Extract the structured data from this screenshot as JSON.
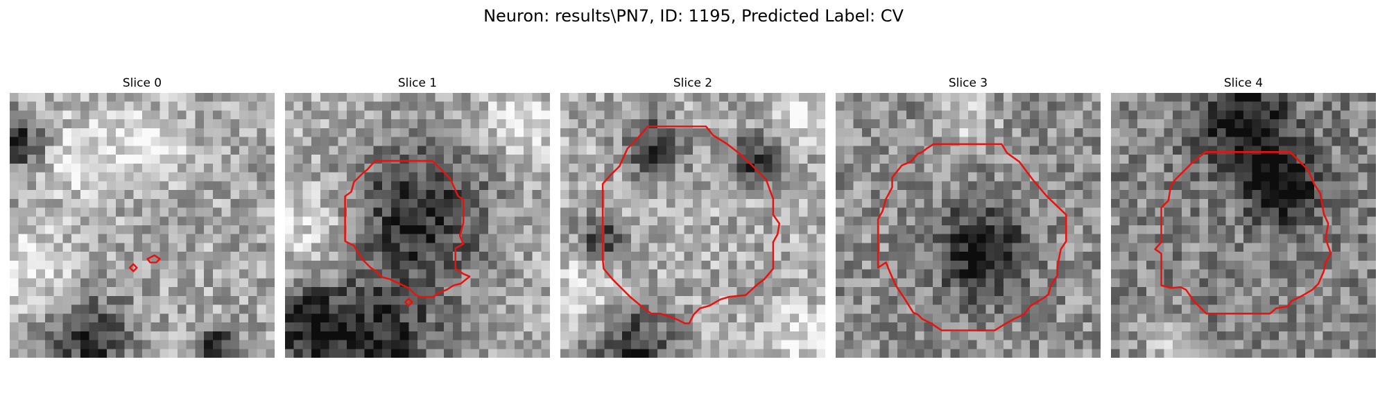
{
  "figure": {
    "title": "Neuron: results\\PN7, ID: 1195, Predicted Label: CV",
    "contour_color": "#e8130f",
    "slices": [
      {
        "title": "Slice 0",
        "mean_gray": 0.66,
        "dark_blobs": [
          [
            0.03,
            0.19,
            0.07
          ],
          [
            0.3,
            0.92,
            0.11
          ],
          [
            0.78,
            0.95,
            0.05
          ]
        ],
        "light_blobs": [
          [
            0.1,
            0.67,
            0.12
          ],
          [
            0.28,
            0.25,
            0.12
          ],
          [
            0.55,
            0.2,
            0.1
          ]
        ]
      },
      {
        "title": "Slice 1",
        "mean_gray": 0.68,
        "dark_blobs": [
          [
            0.35,
            0.94,
            0.17
          ],
          [
            0.08,
            0.88,
            0.1
          ],
          [
            0.5,
            0.45,
            0.2
          ]
        ],
        "light_blobs": [
          [
            0.1,
            0.5,
            0.12
          ],
          [
            0.88,
            0.1,
            0.1
          ]
        ]
      },
      {
        "title": "Slice 2",
        "mean_gray": 0.68,
        "dark_blobs": [
          [
            0.28,
            0.96,
            0.11
          ],
          [
            0.35,
            0.2,
            0.08
          ],
          [
            0.75,
            0.25,
            0.07
          ],
          [
            0.15,
            0.55,
            0.06
          ]
        ],
        "light_blobs": [
          [
            0.08,
            0.75,
            0.1
          ],
          [
            0.9,
            0.9,
            0.08
          ],
          [
            0.9,
            0.1,
            0.07
          ]
        ]
      },
      {
        "title": "Slice 3",
        "mean_gray": 0.56,
        "dark_blobs": [
          [
            0.55,
            0.6,
            0.12
          ]
        ],
        "light_blobs": [
          [
            0.5,
            0.1,
            0.08
          ]
        ]
      },
      {
        "title": "Slice 4",
        "mean_gray": 0.52,
        "dark_blobs": [
          [
            0.5,
            0.12,
            0.12
          ],
          [
            0.65,
            0.35,
            0.1
          ]
        ],
        "light_blobs": [
          [
            0.2,
            0.95,
            0.08
          ]
        ]
      }
    ]
  }
}
